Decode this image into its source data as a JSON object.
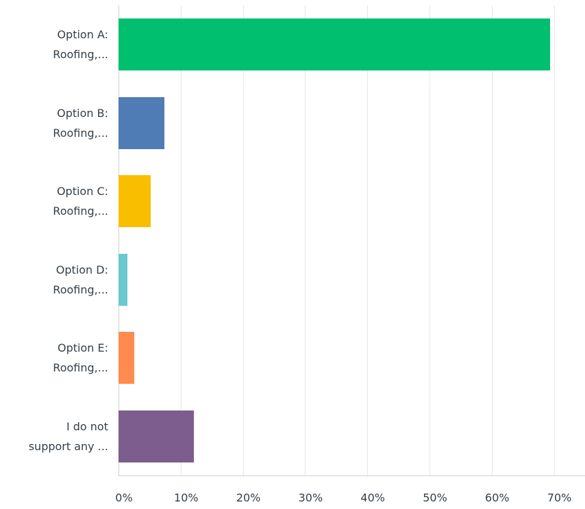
{
  "chart_data": {
    "type": "bar",
    "orientation": "horizontal",
    "categories": [
      "Option A:\nRoofing,...",
      "Option B:\nRoofing,...",
      "Option C:\nRoofing,...",
      "Option D:\nRoofing,...",
      "Option E:\nRoofing,...",
      "I do not\nsupport any ..."
    ],
    "values": [
      69.4,
      7.4,
      5.2,
      1.4,
      2.5,
      12.1
    ],
    "colors": [
      "#00bf6f",
      "#507cb6",
      "#f9be00",
      "#6bc8cd",
      "#ff8b4f",
      "#7d5c8e"
    ],
    "xlim": [
      0,
      75
    ],
    "xticks": [
      {
        "value": 0,
        "label": "0%"
      },
      {
        "value": 10,
        "label": "10%"
      },
      {
        "value": 20,
        "label": "20%"
      },
      {
        "value": 30,
        "label": "30%"
      },
      {
        "value": 40,
        "label": "40%"
      },
      {
        "value": 50,
        "label": "50%"
      },
      {
        "value": 60,
        "label": "60%"
      },
      {
        "value": 70,
        "label": "70%"
      }
    ],
    "grid": true
  }
}
